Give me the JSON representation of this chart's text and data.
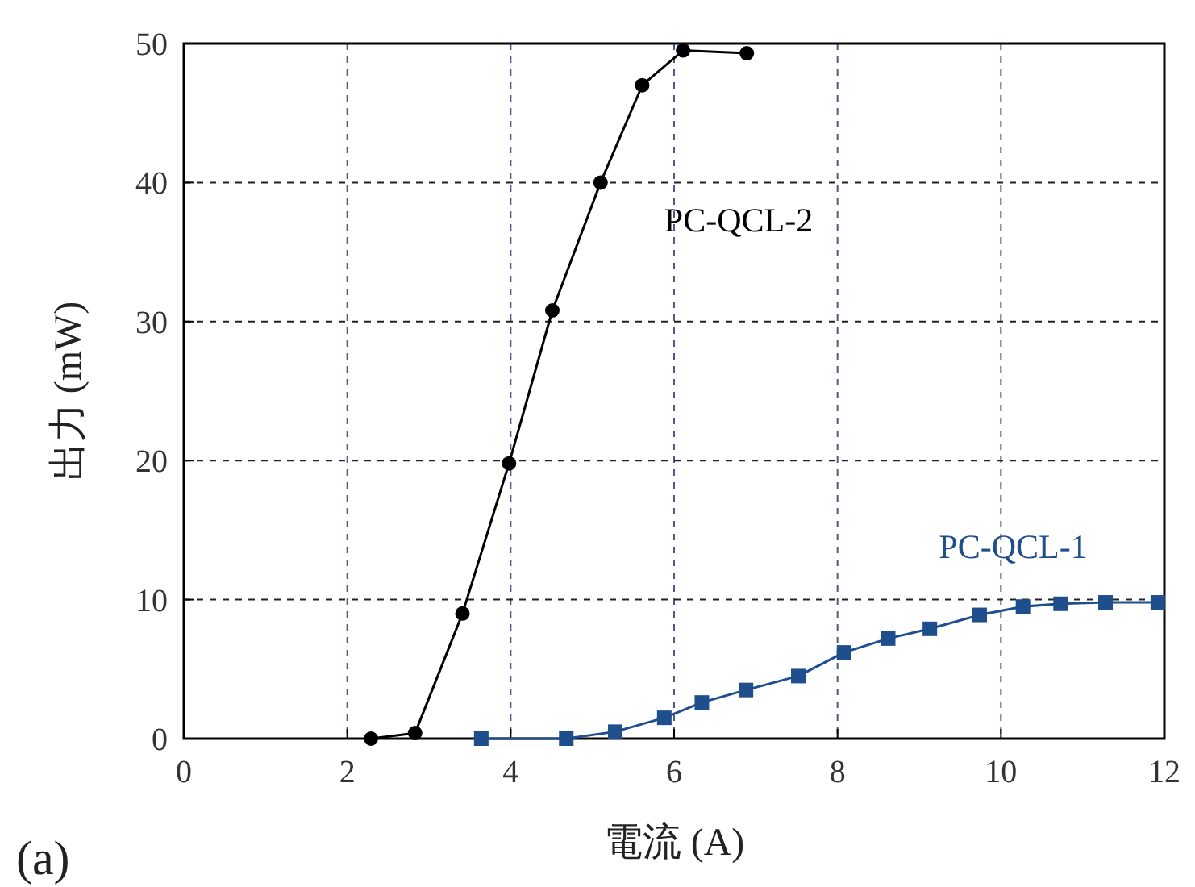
{
  "chart_data": {
    "type": "line",
    "xlabel": "電流 (A)",
    "ylabel": "出力 (mW)",
    "xlim": [
      0,
      12
    ],
    "ylim": [
      0,
      50
    ],
    "xticks": [
      0,
      2,
      4,
      6,
      8,
      10,
      12
    ],
    "yticks": [
      0,
      10,
      20,
      30,
      40,
      50
    ],
    "grid": true,
    "line_style": "solid",
    "annotations": [
      "(a)"
    ],
    "series": [
      {
        "name": "PC-QCL-2",
        "color": "#000000",
        "marker": "circle",
        "x": [
          2.29,
          2.83,
          3.41,
          3.98,
          4.51,
          5.1,
          5.61,
          6.11,
          6.89
        ],
        "values": [
          0,
          0.4,
          9,
          19.8,
          30.8,
          40,
          47,
          49.5,
          49.3
        ]
      },
      {
        "name": "PC-QCL-1",
        "color": "#1f4e8c",
        "marker": "square",
        "x": [
          3.64,
          4.68,
          5.28,
          5.88,
          6.34,
          6.88,
          7.52,
          8.08,
          8.62,
          9.13,
          9.74,
          10.27,
          10.73,
          11.28,
          11.92
        ],
        "values": [
          0,
          0,
          0.5,
          1.5,
          2.6,
          3.5,
          4.5,
          6.2,
          7.2,
          7.9,
          8.9,
          9.5,
          9.7,
          9.8,
          9.8
        ]
      }
    ]
  }
}
